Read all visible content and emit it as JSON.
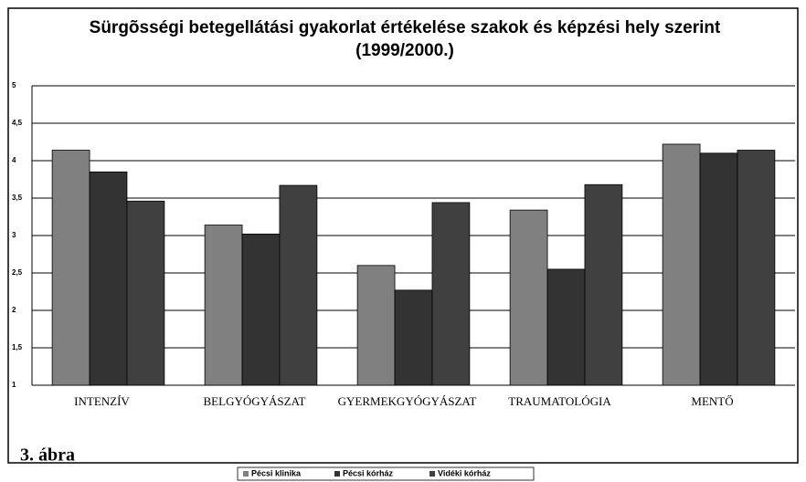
{
  "chart_data": {
    "type": "bar",
    "title": "Sürgõsségi betegellátási gyakorlat értékelése szakok és képzési hely szerint (1999/2000.)",
    "categories": [
      "INTENZÍV",
      "BELGYÓGYÁSZAT",
      "GYERMEKGYÓGYÁSZAT",
      "TRAUMATOLÓGIA",
      "MENTŐ"
    ],
    "series": [
      {
        "name": "Pécsi klinika",
        "color": "#808080",
        "values": [
          4.14,
          3.14,
          2.6,
          3.34,
          4.22
        ]
      },
      {
        "name": "Pécsi kórház",
        "color": "#333333",
        "values": [
          3.85,
          3.02,
          2.27,
          2.55,
          4.1
        ]
      },
      {
        "name": "Vidéki kórház",
        "color": "#404040",
        "values": [
          3.46,
          3.67,
          3.44,
          3.68,
          4.14
        ]
      }
    ],
    "ylim": [
      1,
      5
    ],
    "yticks": [
      1,
      {
        "value": 1.5,
        "label": "1,5"
      },
      2,
      {
        "value": 2.5,
        "label": "2,5"
      },
      3,
      {
        "value": 3.5,
        "label": "3,5"
      },
      4,
      {
        "value": 4.5,
        "label": "4,5"
      },
      5
    ],
    "grid": true,
    "legend": "bottom",
    "caption": "3. ábra"
  }
}
